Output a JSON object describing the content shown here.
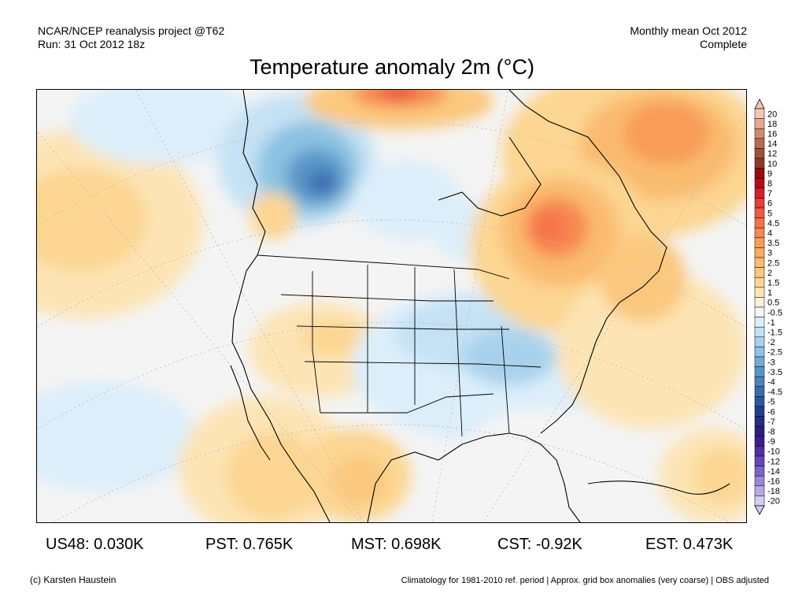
{
  "header": {
    "left_line1": "NCAR/NCEP reanalysis project @T62",
    "left_line2": "Run: 31 Oct 2012 18z",
    "right_line1": "Monthly mean Oct 2012",
    "right_line2": "Complete",
    "title": "Temperature anomaly 2m (°C)"
  },
  "legend": {
    "labels": [
      "20",
      "18",
      "16",
      "14",
      "12",
      "10",
      "9",
      "8",
      "7",
      "6",
      "5",
      "4.5",
      "4",
      "3.5",
      "3",
      "2.5",
      "2",
      "1.5",
      "1",
      "0.5",
      "-0.5",
      "-1",
      "-1.5",
      "-2",
      "-2.5",
      "-3",
      "-3.5",
      "-4",
      "-4.5",
      "-5",
      "-6",
      "-7",
      "-8",
      "-9",
      "-10",
      "-12",
      "-14",
      "-16",
      "-18",
      "-20"
    ],
    "colors": [
      "#f2c6b4",
      "#e8a890",
      "#cf8a70",
      "#b86a52",
      "#a34f3a",
      "#8e3a28",
      "#960a14",
      "#b80a1a",
      "#d51e2a",
      "#e83a38",
      "#f05a45",
      "#f57248",
      "#f7884f",
      "#f89c58",
      "#f9ac63",
      "#fabb6f",
      "#fbc87e",
      "#fcd692",
      "#fde4b4",
      "#fcf0d8",
      "#f5f5f5",
      "#dceefa",
      "#c4e2f4",
      "#a8d2ec",
      "#8cc2e2",
      "#70acd6",
      "#5896c8",
      "#4a82bc",
      "#3c6cae",
      "#2e589e",
      "#253f8e",
      "#262c80",
      "#2c1f7c",
      "#3a1f8c",
      "#4e30a2",
      "#6448b6",
      "#7c64c8",
      "#9a86da",
      "#b8a8e6",
      "#d6ccf2"
    ]
  },
  "stats": [
    {
      "label": "US48: 0.030K"
    },
    {
      "label": "PST: 0.765K"
    },
    {
      "label": "MST: 0.698K"
    },
    {
      "label": "CST: -0.92K"
    },
    {
      "label": "EST: 0.473K"
    }
  ],
  "footer": {
    "left": "(c) Karsten Haustein",
    "right": "Climatology for 1981-2010 ref. period | Approx. grid box anomalies (very coarse) | OBS adjusted"
  }
}
